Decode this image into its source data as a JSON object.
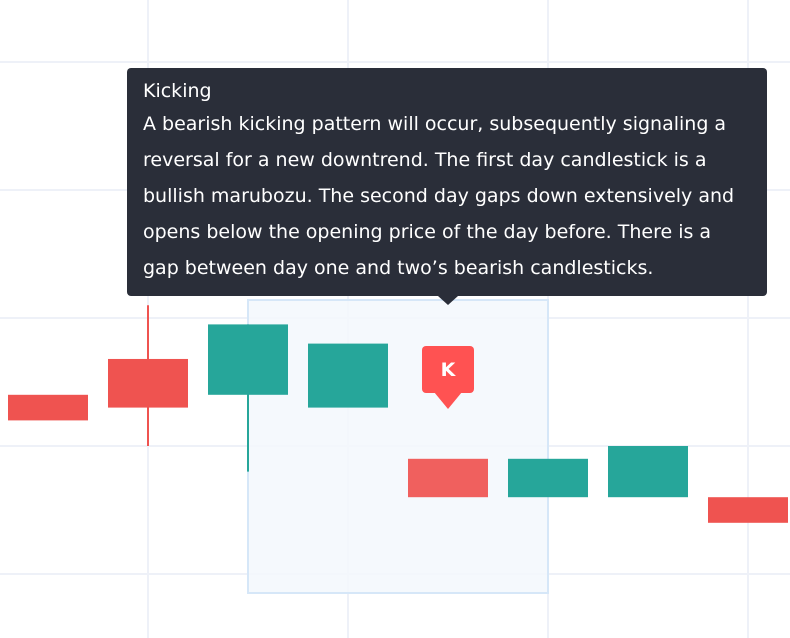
{
  "chart_data": {
    "type": "candlestick",
    "colors": {
      "up": "#26a69a",
      "down": "#ef5350",
      "grid": "#eef1f8",
      "highlight_fill": "#f3f8fd",
      "highlight_border": "#d6e7f8",
      "tooltip_bg": "#2a2e39",
      "marker": "#ff5252"
    },
    "grid": true,
    "candles": [
      {
        "open": 1.4,
        "high": 1.4,
        "low": 1.2,
        "close": 1.2
      },
      {
        "open": 1.68,
        "high": 2.1,
        "low": 1.0,
        "close": 1.3
      },
      {
        "open": 1.4,
        "high": 1.95,
        "low": 0.8,
        "close": 1.95
      },
      {
        "open": 1.3,
        "high": 1.8,
        "low": 1.3,
        "close": 1.8
      },
      {
        "open": 0.9,
        "high": 0.9,
        "low": 0.6,
        "close": 0.6
      },
      {
        "open": 0.6,
        "high": 0.9,
        "low": 0.6,
        "close": 0.9
      },
      {
        "open": 0.6,
        "high": 1.0,
        "low": 0.6,
        "close": 1.0
      },
      {
        "open": 0.6,
        "high": 0.6,
        "low": 0.4,
        "close": 0.4
      }
    ],
    "pattern": {
      "marker_label": "K",
      "tooltip_title": "Kicking",
      "tooltip_text": "A bearish kicking pattern will occur, subsequently signaling a reversal for a new downtrend. The first day candlestick is a bullish marubozu. The second day gaps down extensively and opens below the opening price of the day before. There is a gap between day one and two’s bearish candlesticks."
    }
  }
}
